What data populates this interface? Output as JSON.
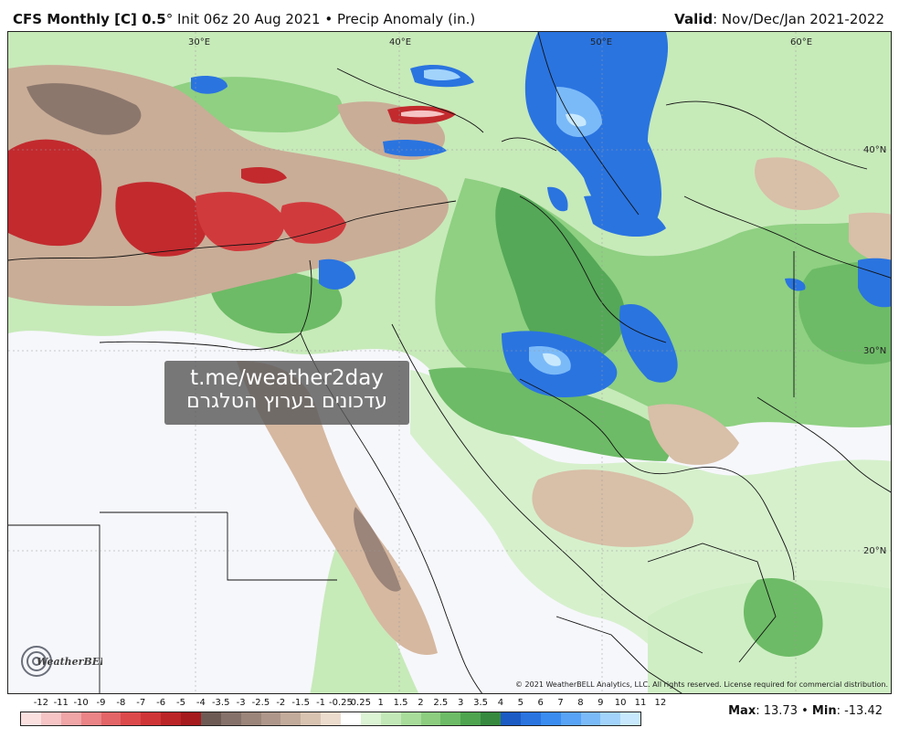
{
  "header": {
    "model": "CFS Monthly [C] 0.5",
    "degree": "°",
    "init": "Init 06z 20 Aug 2021",
    "bullet": "•",
    "product": "Precip Anomaly (in.)",
    "valid_label": "Valid",
    "valid_value": ": Nov/Dec/Jan 2021-2022"
  },
  "map": {
    "lon_labels": [
      "30°E",
      "40°E",
      "50°E",
      "60°E"
    ],
    "lat_labels": [
      "40°N",
      "30°N",
      "20°N"
    ]
  },
  "watermark": {
    "line1": "t.me/weather2day",
    "line2": "עדכונים בערוץ הטלגרם"
  },
  "logo_text": "WeatherBELL",
  "copyright": "© 2021 WeatherBELL Analytics, LLC. All rights reserved. License required for commercial distribution.",
  "legend": {
    "labels": [
      "-12",
      "-11",
      "-10",
      "-9",
      "-8",
      "-7",
      "-6",
      "-5",
      "-4",
      "-3.5",
      "-3",
      "-2.5",
      "-2",
      "-1.5",
      "-1",
      "-0.25",
      "0.25",
      "1",
      "1.5",
      "2",
      "2.5",
      "3",
      "3.5",
      "4",
      "5",
      "6",
      "7",
      "8",
      "9",
      "10",
      "11",
      "12"
    ],
    "colors": [
      "#fbe0e0",
      "#f6c4c4",
      "#f0a5a6",
      "#ea8486",
      "#e36567",
      "#dc4a4c",
      "#cf3537",
      "#bb2528",
      "#a51b1e",
      "#6e5a54",
      "#86716a",
      "#9b8479",
      "#ae978a",
      "#c2ab9a",
      "#d8c3b1",
      "#ecdccd",
      "#ffffff",
      "#dcf3d4",
      "#c3e8b8",
      "#a8dc9b",
      "#8ccd80",
      "#6dbb66",
      "#4ea44f",
      "#36893f",
      "#1c5bc4",
      "#2a74e0",
      "#3a8cf0",
      "#58a3f5",
      "#7bbaf8",
      "#a2d3fb",
      "#c8e9fd"
    ],
    "max_label": "Max",
    "max_value": ": 13.73",
    "min_label": "Min",
    "min_value": ": -13.42"
  }
}
